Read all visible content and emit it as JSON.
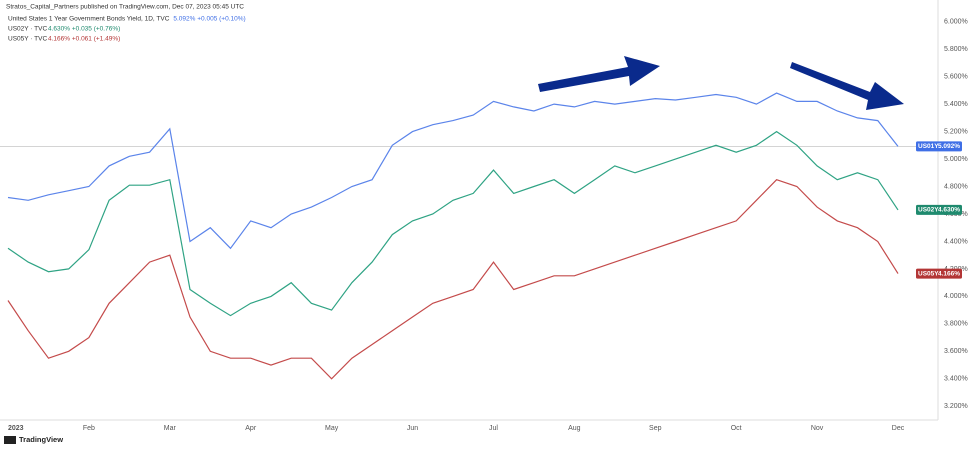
{
  "chart_data": {
    "type": "line",
    "header": "Stratos_Capital_Partners published on TradingView.com, Dec 07, 2023 05:45 UTC",
    "title": "United States 1 Year Government Bonds Yield, 1D, TVC",
    "title_quote": "5.092% +0.005 (+0.10%)",
    "legend": [
      {
        "name": "US02Y · TVC",
        "quote": "4.630% +0.035 (+0.76%)"
      },
      {
        "name": "US05Y · TVC",
        "quote": "4.166% +0.061 (+1.49%)"
      }
    ],
    "footer": "TradingView",
    "categories": [
      "2023",
      null,
      null,
      null,
      "Feb",
      null,
      null,
      null,
      "Mar",
      null,
      null,
      null,
      "Apr",
      null,
      null,
      null,
      "May",
      null,
      null,
      null,
      "Jun",
      null,
      null,
      null,
      "Jul",
      null,
      null,
      null,
      "Aug",
      null,
      null,
      null,
      "Sep",
      null,
      null,
      null,
      "Oct",
      null,
      null,
      null,
      "Nov",
      null,
      null,
      null,
      "Dec"
    ],
    "series": [
      {
        "name": "US01Y",
        "color": "#5b84ea",
        "tag_color": "#3f6fe6",
        "values": [
          4.72,
          4.7,
          4.74,
          4.77,
          4.8,
          4.95,
          5.02,
          5.05,
          5.22,
          4.4,
          4.5,
          4.35,
          4.55,
          4.5,
          4.6,
          4.65,
          4.72,
          4.8,
          4.85,
          5.1,
          5.2,
          5.25,
          5.28,
          5.32,
          5.42,
          5.38,
          5.35,
          5.4,
          5.38,
          5.42,
          5.4,
          5.42,
          5.44,
          5.43,
          5.45,
          5.47,
          5.45,
          5.4,
          5.48,
          5.42,
          5.42,
          5.35,
          5.3,
          5.28,
          5.092
        ],
        "value_labels": [
          null,
          null,
          null,
          null,
          null,
          null,
          null,
          null,
          null,
          null,
          null,
          null,
          null,
          null,
          null,
          null,
          null,
          null,
          null,
          null,
          null,
          null,
          null,
          null,
          null,
          null,
          null,
          null,
          null,
          null,
          null,
          null,
          null,
          null,
          null,
          null,
          null,
          null,
          null,
          null,
          null,
          null,
          null,
          null,
          "5.092%"
        ]
      },
      {
        "name": "US02Y",
        "color": "#2fa384",
        "tag_color": "#1f8a6e",
        "values": [
          4.35,
          4.25,
          4.18,
          4.2,
          4.34,
          4.7,
          4.81,
          4.81,
          4.85,
          4.05,
          3.95,
          3.86,
          3.95,
          4.0,
          4.1,
          3.95,
          3.9,
          4.1,
          4.25,
          4.45,
          4.55,
          4.6,
          4.7,
          4.75,
          4.92,
          4.75,
          4.8,
          4.85,
          4.75,
          4.85,
          4.95,
          4.9,
          4.95,
          5.0,
          5.05,
          5.1,
          5.05,
          5.1,
          5.2,
          5.1,
          4.95,
          4.85,
          4.9,
          4.85,
          4.63
        ],
        "value_labels": [
          null,
          null,
          null,
          null,
          null,
          null,
          null,
          null,
          null,
          null,
          null,
          null,
          null,
          null,
          null,
          null,
          null,
          null,
          null,
          null,
          null,
          null,
          null,
          null,
          null,
          null,
          null,
          null,
          null,
          null,
          null,
          null,
          null,
          null,
          null,
          null,
          null,
          null,
          null,
          null,
          null,
          null,
          null,
          null,
          "4.630%"
        ]
      },
      {
        "name": "US05Y",
        "color": "#c44b4b",
        "tag_color": "#b33636",
        "values": [
          3.97,
          3.75,
          3.55,
          3.6,
          3.7,
          3.95,
          4.1,
          4.25,
          4.3,
          3.85,
          3.6,
          3.55,
          3.55,
          3.5,
          3.55,
          3.55,
          3.4,
          3.55,
          3.65,
          3.75,
          3.85,
          3.95,
          4.0,
          4.05,
          4.25,
          4.05,
          4.1,
          4.15,
          4.15,
          4.2,
          4.25,
          4.3,
          4.35,
          4.4,
          4.45,
          4.5,
          4.55,
          4.7,
          4.85,
          4.8,
          4.65,
          4.55,
          4.5,
          4.4,
          4.166
        ],
        "value_labels": [
          null,
          null,
          null,
          null,
          null,
          null,
          null,
          null,
          null,
          null,
          null,
          null,
          null,
          null,
          null,
          null,
          null,
          null,
          null,
          null,
          null,
          null,
          null,
          null,
          null,
          null,
          null,
          null,
          null,
          null,
          null,
          null,
          null,
          null,
          null,
          null,
          null,
          null,
          null,
          null,
          null,
          null,
          null,
          null,
          "4.166%"
        ]
      }
    ],
    "ylim": [
      3.1,
      6.1
    ],
    "yticks": [
      {
        "value": 6.0,
        "label": "6.000%"
      },
      {
        "value": 5.8,
        "label": "5.800%"
      },
      {
        "value": 5.6,
        "label": "5.600%"
      },
      {
        "value": 5.4,
        "label": "5.400%"
      },
      {
        "value": 5.2,
        "label": "5.200%"
      },
      {
        "value": 5.0,
        "label": "5.000%"
      },
      {
        "value": 4.8,
        "label": "4.800%"
      },
      {
        "value": 4.6,
        "label": "4.600%"
      },
      {
        "value": 4.4,
        "label": "4.400%"
      },
      {
        "value": 4.2,
        "label": "4.200%"
      },
      {
        "value": 4.0,
        "label": "4.000%"
      },
      {
        "value": 3.8,
        "label": "3.800%"
      },
      {
        "value": 3.6,
        "label": "3.600%"
      },
      {
        "value": 3.4,
        "label": "3.400%"
      },
      {
        "value": 3.2,
        "label": "3.200%"
      }
    ],
    "grid": false
  }
}
